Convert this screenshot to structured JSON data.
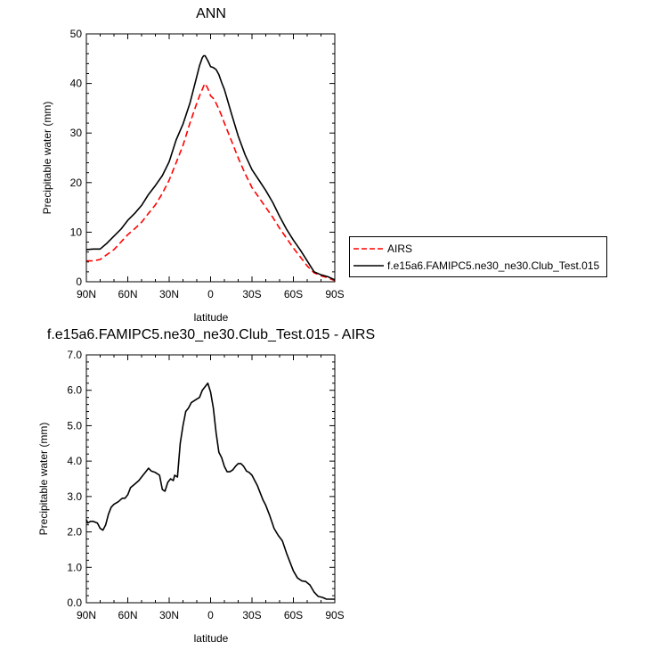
{
  "chart_data": [
    {
      "type": "line",
      "title": "ANN",
      "xlabel": "latitude",
      "ylabel": "Precipitable water (mm)",
      "xlim": [
        90,
        -90
      ],
      "ylim": [
        0,
        50
      ],
      "x_tick_values": [
        90,
        60,
        30,
        0,
        -30,
        -60,
        -90
      ],
      "x_tick_labels": [
        "90N",
        "60N",
        "30N",
        "0",
        "30S",
        "60S",
        "90S"
      ],
      "y_ticks": [
        0,
        10,
        20,
        30,
        40,
        50
      ],
      "y_tick_labels": [
        "0",
        "10",
        "20",
        "30",
        "40",
        "50"
      ],
      "legend_placement": "right",
      "series": [
        {
          "name": "AIRS",
          "color": "#ff0000",
          "dash": "dashed",
          "x": [
            90,
            85,
            80,
            75,
            70,
            65,
            60,
            55,
            50,
            45,
            40,
            35,
            30,
            25,
            20,
            15,
            10,
            8,
            6,
            5,
            4,
            2,
            0,
            -2,
            -4,
            -6,
            -8,
            -10,
            -15,
            -20,
            -25,
            -30,
            -35,
            -40,
            -45,
            -50,
            -55,
            -60,
            -65,
            -70,
            -75,
            -80,
            -85,
            -90
          ],
          "y": [
            4.2,
            4.2,
            4.5,
            5.5,
            6.5,
            8.0,
            9.5,
            10.7,
            12.0,
            13.8,
            15.5,
            17.8,
            20.5,
            24.0,
            27.5,
            32.0,
            36.0,
            37.5,
            38.8,
            39.5,
            40.0,
            39.0,
            37.5,
            37.0,
            36.0,
            34.8,
            33.5,
            32.0,
            28.5,
            25.0,
            21.8,
            19.0,
            17.0,
            15.0,
            13.0,
            10.8,
            8.8,
            6.8,
            5.0,
            3.2,
            1.8,
            1.2,
            0.8,
            0.2
          ]
        },
        {
          "name": "f.e15a6.FAMIPC5.ne30_ne30.Club_Test.015",
          "color": "#000000",
          "dash": "solid",
          "x": [
            90,
            85,
            80,
            75,
            70,
            65,
            60,
            55,
            50,
            45,
            40,
            35,
            30,
            25,
            20,
            15,
            10,
            8,
            6,
            5,
            4,
            2,
            0,
            -2,
            -4,
            -6,
            -8,
            -10,
            -15,
            -20,
            -25,
            -30,
            -35,
            -40,
            -45,
            -50,
            -55,
            -60,
            -65,
            -70,
            -75,
            -80,
            -85,
            -90
          ],
          "y": [
            6.5,
            6.6,
            6.6,
            7.8,
            9.2,
            10.6,
            12.4,
            13.8,
            15.4,
            17.6,
            19.4,
            21.4,
            24.2,
            28.6,
            31.8,
            36.0,
            41.4,
            43.6,
            45.2,
            45.6,
            45.6,
            44.6,
            43.4,
            43.2,
            42.8,
            41.8,
            40.2,
            38.8,
            34.0,
            29.4,
            25.6,
            22.6,
            20.5,
            18.4,
            16.0,
            13.2,
            10.6,
            8.4,
            6.4,
            4.2,
            2.0,
            1.4,
            1.0,
            0.4
          ]
        }
      ]
    },
    {
      "type": "line",
      "title": "f.e15a6.FAMIPC5.ne30_ne30.Club_Test.015 - AIRS",
      "xlabel": "latitude",
      "ylabel": "Precipitable water (mm)",
      "xlim": [
        90,
        -90
      ],
      "ylim": [
        0,
        7
      ],
      "x_tick_values": [
        90,
        60,
        30,
        0,
        -30,
        -60,
        -90
      ],
      "x_tick_labels": [
        "90N",
        "60N",
        "30N",
        "0",
        "30S",
        "60S",
        "90S"
      ],
      "y_ticks": [
        0,
        1,
        2,
        3,
        4,
        5,
        6,
        7
      ],
      "y_tick_labels": [
        "0.0",
        "1.0",
        "2.0",
        "3.0",
        "4.0",
        "5.0",
        "6.0",
        "7.0"
      ],
      "series": [
        {
          "color": "#000000",
          "dash": "solid",
          "x": [
            90,
            89,
            87,
            85,
            82,
            80,
            78,
            76,
            74,
            72,
            70,
            67,
            64,
            62,
            60,
            58,
            55,
            52,
            50,
            47,
            45,
            43,
            40,
            37,
            35,
            33,
            31,
            29,
            27,
            26,
            24,
            22,
            20,
            18,
            16,
            14,
            12,
            10,
            8,
            6,
            4,
            2,
            0,
            -2,
            -4,
            -6,
            -8,
            -10,
            -12,
            -14,
            -16,
            -18,
            -20,
            -22,
            -24,
            -26,
            -28,
            -30,
            -32,
            -34,
            -36,
            -38,
            -40,
            -43,
            -46,
            -49,
            -52,
            -55,
            -58,
            -60,
            -63,
            -66,
            -69,
            -72,
            -75,
            -78,
            -81,
            -84,
            -86,
            -88,
            -90
          ],
          "y": [
            2.35,
            2.25,
            2.3,
            2.3,
            2.25,
            2.1,
            2.05,
            2.2,
            2.5,
            2.7,
            2.78,
            2.85,
            2.95,
            2.95,
            3.05,
            3.25,
            3.35,
            3.45,
            3.55,
            3.7,
            3.8,
            3.72,
            3.68,
            3.6,
            3.2,
            3.15,
            3.4,
            3.5,
            3.45,
            3.6,
            3.55,
            4.5,
            5.0,
            5.4,
            5.5,
            5.65,
            5.7,
            5.75,
            5.8,
            6.0,
            6.1,
            6.2,
            5.95,
            5.5,
            4.8,
            4.25,
            4.1,
            3.85,
            3.7,
            3.7,
            3.75,
            3.85,
            3.93,
            3.93,
            3.85,
            3.72,
            3.68,
            3.6,
            3.45,
            3.3,
            3.1,
            2.9,
            2.75,
            2.45,
            2.1,
            1.9,
            1.75,
            1.4,
            1.1,
            0.9,
            0.7,
            0.62,
            0.6,
            0.5,
            0.3,
            0.18,
            0.15,
            0.1,
            0.1,
            0.1,
            0.1
          ]
        }
      ]
    }
  ]
}
